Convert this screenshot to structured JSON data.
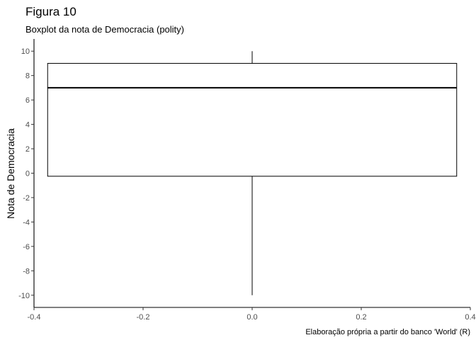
{
  "chart_data": {
    "type": "boxplot",
    "title": "Figura 10",
    "subtitle": "Boxplot da nota de Democracia (polity)",
    "xlabel": "",
    "ylabel": "Nota de Democracia",
    "caption": "Elaboração própria a partir do banco 'World' (R)",
    "xlim": [
      -0.4,
      0.4
    ],
    "ylim": [
      -11,
      11
    ],
    "x_ticks": [
      -0.4,
      -0.2,
      0.0,
      0.2,
      0.4
    ],
    "x_tick_labels": [
      "-0.4",
      "-0.2",
      "0.0",
      "0.2",
      "0.4"
    ],
    "y_ticks": [
      -10,
      -8,
      -6,
      -4,
      -2,
      0,
      2,
      4,
      6,
      8,
      10
    ],
    "y_tick_labels": [
      "-10",
      "-8",
      "-6",
      "-4",
      "-2",
      "0",
      "2",
      "4",
      "6",
      "8",
      "10"
    ],
    "grid": false,
    "box": {
      "x_center": 0.0,
      "x_left": -0.375,
      "x_right": 0.375,
      "min": -10,
      "q1": -0.25,
      "median": 7,
      "q3": 9,
      "max": 10
    },
    "colors": {
      "box_fill": "#ffffff",
      "stroke": "#000000",
      "tick_label": "#4d4d4d",
      "background": "#ffffff"
    }
  }
}
